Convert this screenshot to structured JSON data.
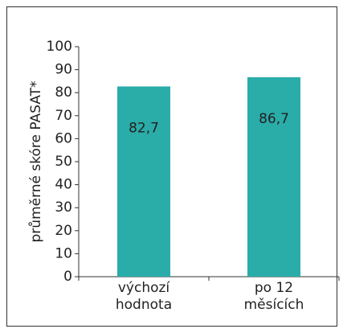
{
  "chart_data": {
    "type": "bar",
    "y_label": "průměrné skóre PASAT*",
    "categories": [
      "výchozí\nhodnota",
      "po 12 měsících"
    ],
    "values": [
      82.7,
      86.7
    ],
    "value_labels": [
      "82,7",
      "86,7"
    ],
    "color": "#2aaca9",
    "ylim": [
      0,
      100
    ],
    "yticks": [
      0,
      10,
      20,
      30,
      40,
      50,
      60,
      70,
      80,
      90,
      100
    ],
    "grid": false
  }
}
